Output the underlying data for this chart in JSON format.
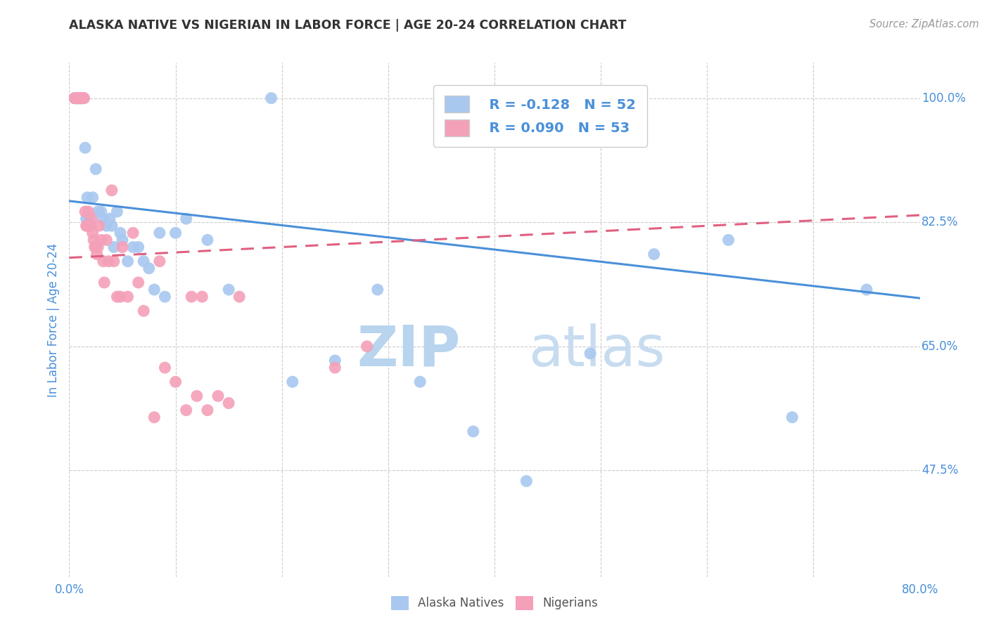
{
  "title": "ALASKA NATIVE VS NIGERIAN IN LABOR FORCE | AGE 20-24 CORRELATION CHART",
  "source": "Source: ZipAtlas.com",
  "ylabel": "In Labor Force | Age 20-24",
  "xlim": [
    0.0,
    0.8
  ],
  "ylim": [
    0.325,
    1.05
  ],
  "x_ticks": [
    0.0,
    0.1,
    0.2,
    0.3,
    0.4,
    0.5,
    0.6,
    0.7,
    0.8
  ],
  "x_tick_labels": [
    "0.0%",
    "",
    "",
    "",
    "",
    "",
    "",
    "",
    "80.0%"
  ],
  "y_tick_labels_right": [
    "100.0%",
    "82.5%",
    "65.0%",
    "47.5%"
  ],
  "y_ticks_right": [
    1.0,
    0.825,
    0.65,
    0.475
  ],
  "color_blue": "#A8C8F0",
  "color_pink": "#F4A0B8",
  "color_blue_line": "#4A90D9",
  "color_pink_line": "#E06080",
  "color_text_blue": "#4A90D9",
  "color_axis_label": "#4A90D9",
  "watermark_zip": "ZIP",
  "watermark_atlas": "atlas",
  "legend_R1": "R = -0.128",
  "legend_N1": "N = 52",
  "legend_R2": "R = 0.090",
  "legend_N2": "N = 53",
  "alaska_x": [
    0.005,
    0.006,
    0.007,
    0.007,
    0.008,
    0.009,
    0.01,
    0.01,
    0.011,
    0.012,
    0.013,
    0.015,
    0.016,
    0.017,
    0.018,
    0.02,
    0.022,
    0.025,
    0.027,
    0.03,
    0.032,
    0.035,
    0.038,
    0.04,
    0.042,
    0.045,
    0.048,
    0.05,
    0.055,
    0.06,
    0.065,
    0.07,
    0.075,
    0.08,
    0.085,
    0.09,
    0.1,
    0.11,
    0.13,
    0.15,
    0.19,
    0.21,
    0.25,
    0.29,
    0.33,
    0.38,
    0.43,
    0.49,
    0.55,
    0.62,
    0.68,
    0.75
  ],
  "alaska_y": [
    1.0,
    1.0,
    1.0,
    1.0,
    1.0,
    1.0,
    1.0,
    1.0,
    1.0,
    1.0,
    1.0,
    0.93,
    0.83,
    0.86,
    0.83,
    0.82,
    0.86,
    0.9,
    0.84,
    0.84,
    0.83,
    0.82,
    0.83,
    0.82,
    0.79,
    0.84,
    0.81,
    0.8,
    0.77,
    0.79,
    0.79,
    0.77,
    0.76,
    0.73,
    0.81,
    0.72,
    0.81,
    0.83,
    0.8,
    0.73,
    1.0,
    0.6,
    0.63,
    0.73,
    0.6,
    0.53,
    0.46,
    0.64,
    0.78,
    0.8,
    0.55,
    0.73
  ],
  "nigerian_x": [
    0.005,
    0.006,
    0.007,
    0.008,
    0.009,
    0.01,
    0.01,
    0.011,
    0.012,
    0.013,
    0.014,
    0.015,
    0.016,
    0.017,
    0.018,
    0.019,
    0.02,
    0.021,
    0.022,
    0.023,
    0.024,
    0.025,
    0.026,
    0.027,
    0.028,
    0.03,
    0.032,
    0.033,
    0.035,
    0.037,
    0.04,
    0.042,
    0.045,
    0.048,
    0.05,
    0.055,
    0.06,
    0.065,
    0.07,
    0.1,
    0.25,
    0.28,
    0.08,
    0.085,
    0.09,
    0.11,
    0.115,
    0.12,
    0.125,
    0.13,
    0.14,
    0.15,
    0.16
  ],
  "nigerian_y": [
    1.0,
    1.0,
    1.0,
    1.0,
    1.0,
    1.0,
    1.0,
    1.0,
    1.0,
    1.0,
    1.0,
    0.84,
    0.82,
    0.82,
    0.84,
    0.82,
    0.82,
    0.83,
    0.81,
    0.8,
    0.79,
    0.79,
    0.78,
    0.79,
    0.82,
    0.8,
    0.77,
    0.74,
    0.8,
    0.77,
    0.87,
    0.77,
    0.72,
    0.72,
    0.79,
    0.72,
    0.81,
    0.74,
    0.7,
    0.6,
    0.62,
    0.65,
    0.55,
    0.77,
    0.62,
    0.56,
    0.72,
    0.58,
    0.72,
    0.56,
    0.58,
    0.57,
    0.72
  ],
  "blue_trend_x": [
    0.0,
    0.8
  ],
  "blue_trend_y": [
    0.855,
    0.718
  ],
  "pink_trend_x": [
    0.0,
    0.8
  ],
  "pink_trend_y": [
    0.775,
    0.835
  ]
}
